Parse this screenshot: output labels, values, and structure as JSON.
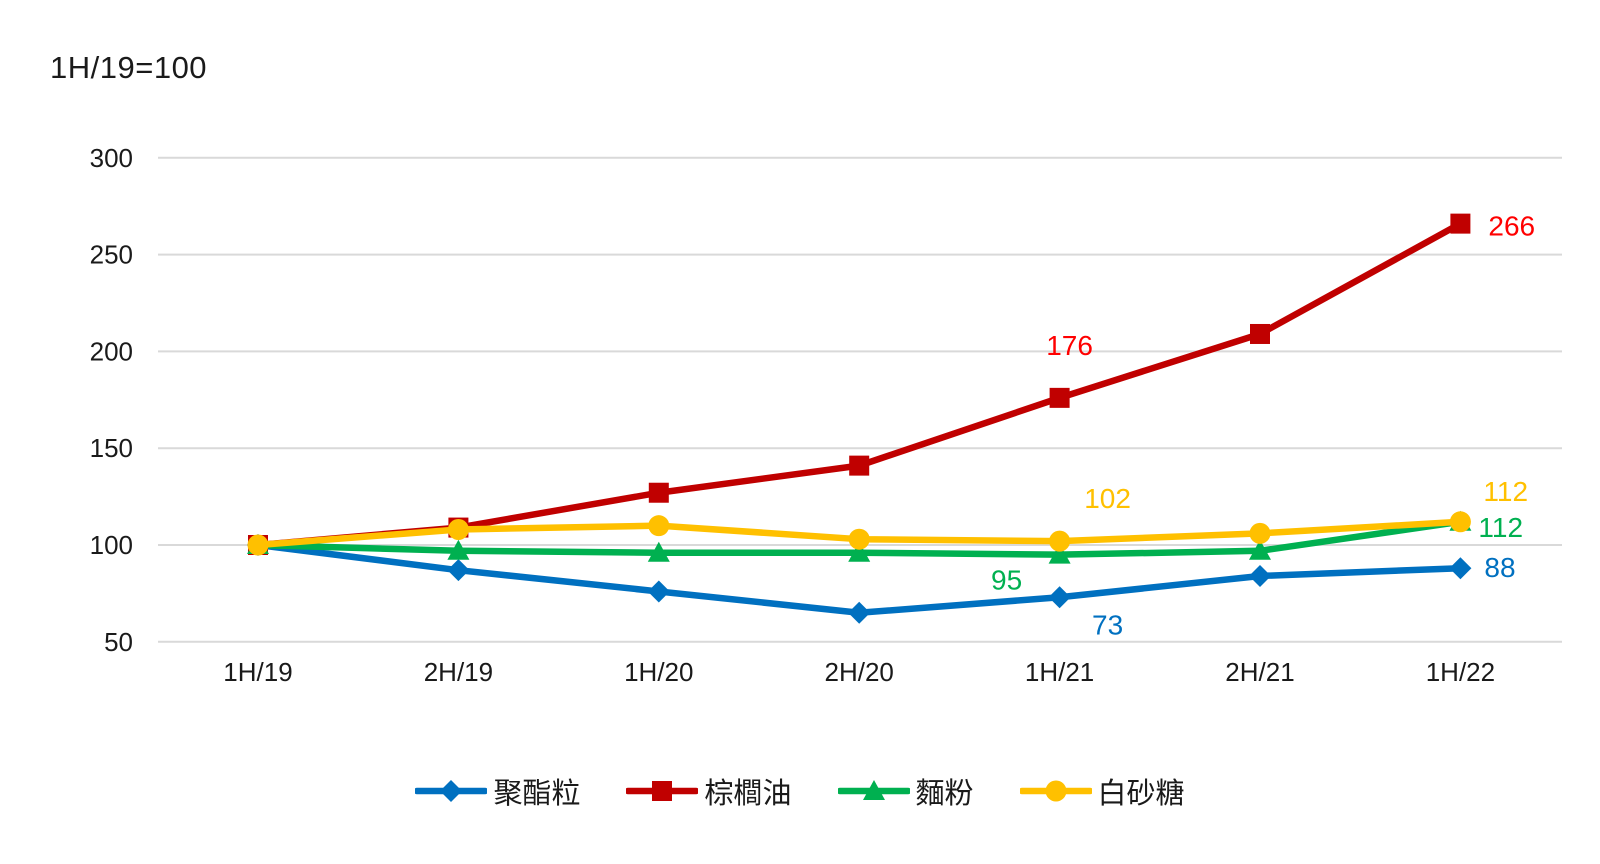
{
  "chart": {
    "title_note": "1H/19=100"
  },
  "chart_data": {
    "type": "line",
    "title": "1H/19=100",
    "categories": [
      "1H/19",
      "2H/19",
      "1H/20",
      "2H/20",
      "1H/21",
      "2H/21",
      "1H/22"
    ],
    "y_ticks": [
      300,
      250,
      200,
      150,
      100,
      50
    ],
    "ylim": [
      50,
      300
    ],
    "grid": "horizontal",
    "gridline_color": "#D9D9D9",
    "axis_text_color": "#1a1a1a",
    "legend_position": "bottom",
    "series": [
      {
        "name": "聚酯粒",
        "marker": "diamond",
        "color": "#0070C0",
        "label_color": "#0070C0",
        "values": [
          100,
          87,
          76,
          65,
          73,
          84,
          88
        ],
        "point_labels": [
          {
            "category": "1H/21",
            "text": "73"
          },
          {
            "category": "1H/22",
            "text": "88"
          }
        ]
      },
      {
        "name": "棕櫚油",
        "marker": "square",
        "color": "#C00000",
        "label_color": "#FF0000",
        "values": [
          100,
          109,
          127,
          141,
          176,
          209,
          266
        ],
        "point_labels": [
          {
            "category": "1H/21",
            "text": "176"
          },
          {
            "category": "1H/22",
            "text": "266"
          }
        ]
      },
      {
        "name": "麵粉",
        "marker": "triangle",
        "color": "#00B050",
        "label_color": "#00B050",
        "values": [
          100,
          97,
          96,
          96,
          95,
          97,
          112
        ],
        "point_labels": [
          {
            "category": "1H/21",
            "text": "95"
          },
          {
            "category": "1H/22",
            "text": "112"
          }
        ]
      },
      {
        "name": "白砂糖",
        "marker": "circle",
        "color": "#FFC000",
        "label_color": "#FFC000",
        "values": [
          100,
          108,
          110,
          103,
          102,
          106,
          112
        ],
        "point_labels": [
          {
            "category": "1H/21",
            "text": "102"
          },
          {
            "category": "1H/22",
            "text": "112"
          }
        ]
      }
    ]
  }
}
